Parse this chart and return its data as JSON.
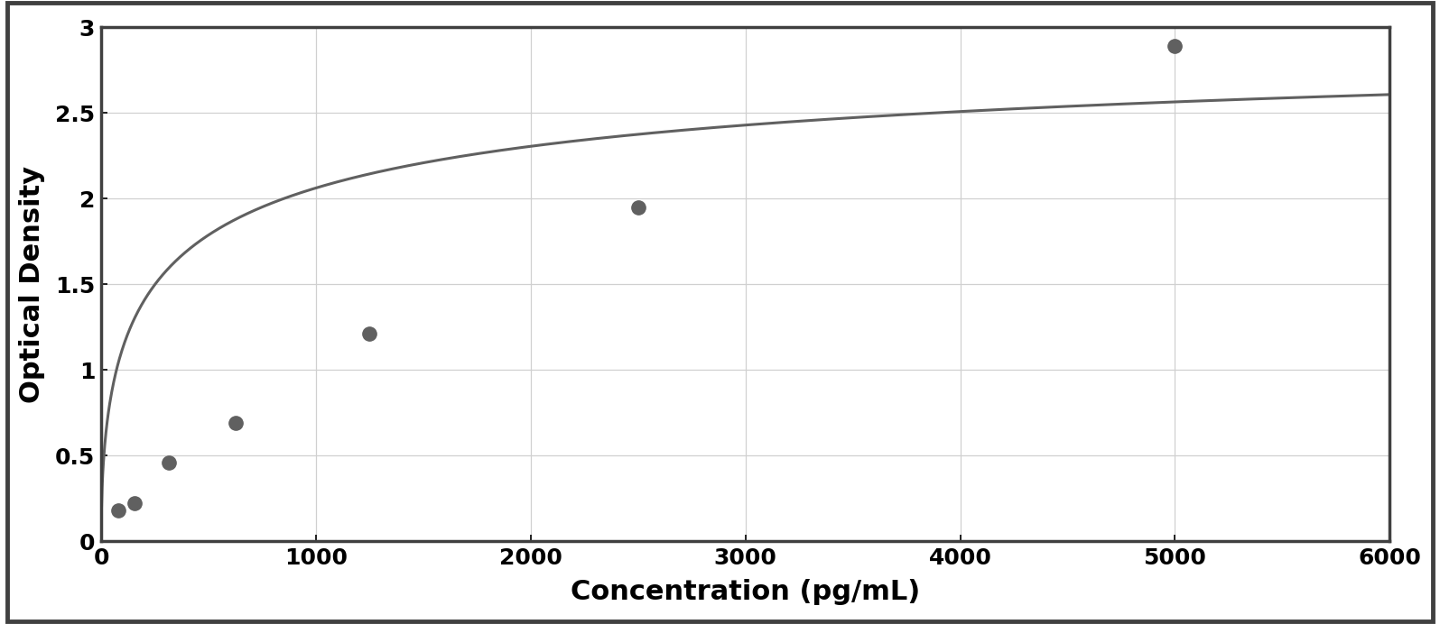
{
  "x_data": [
    78,
    156,
    313,
    625,
    1250,
    2500,
    5000
  ],
  "y_data": [
    0.18,
    0.22,
    0.46,
    0.69,
    1.21,
    1.95,
    2.89
  ],
  "xlabel": "Concentration (pg/mL)",
  "ylabel": "Optical Density",
  "xlim": [
    0,
    6000
  ],
  "ylim": [
    0,
    3.0
  ],
  "xticks": [
    0,
    1000,
    2000,
    3000,
    4000,
    5000,
    6000
  ],
  "yticks": [
    0,
    0.5,
    1.0,
    1.5,
    2.0,
    2.5,
    3.0
  ],
  "marker_color": "#606060",
  "line_color": "#606060",
  "background_color": "#ffffff",
  "plot_bg_color": "#ffffff",
  "grid_color": "#d0d0d0",
  "border_color": "#000000",
  "outer_border_color": "#404040",
  "xlabel_fontsize": 22,
  "ylabel_fontsize": 22,
  "tick_fontsize": 18,
  "marker_size": 11,
  "line_width": 2.2,
  "outer_border_lw": 3.5
}
